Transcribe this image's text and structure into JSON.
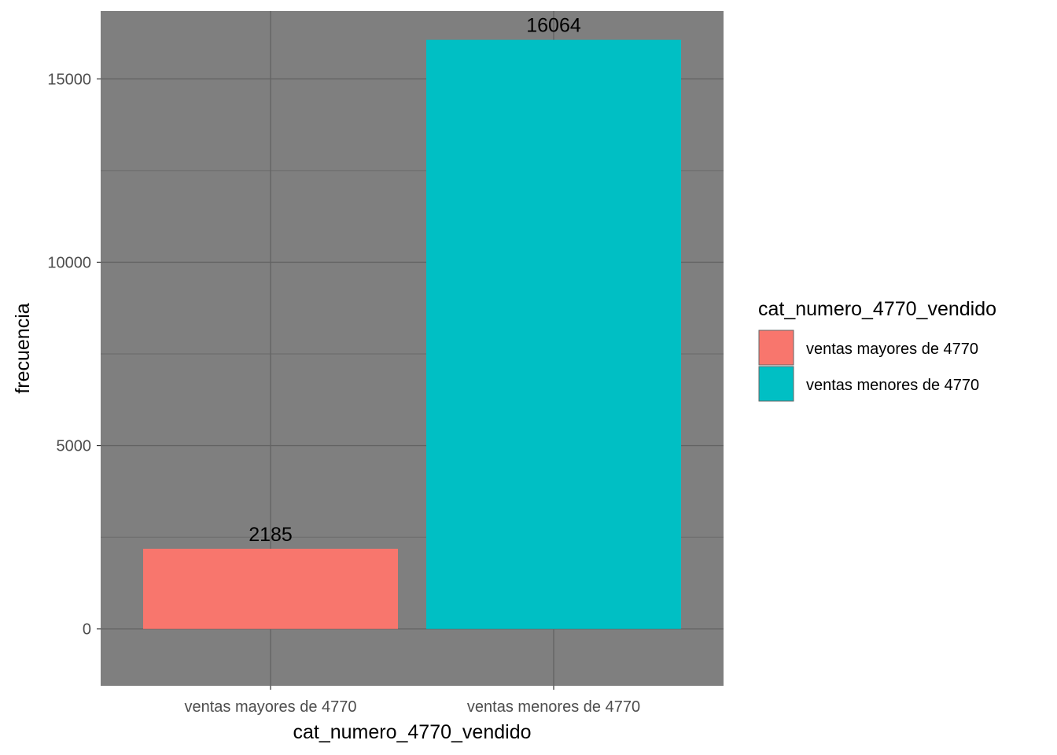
{
  "chart_data": {
    "type": "bar",
    "categories": [
      "ventas mayores de 4770",
      "ventas menores de 4770"
    ],
    "values": [
      2185,
      16064
    ],
    "data_labels": [
      "2185",
      "16064"
    ],
    "colors": [
      "#F8766D",
      "#00BFC4"
    ],
    "xlabel": "cat_numero_4770_vendido",
    "ylabel": "frecuencia",
    "ylim": [
      -1550,
      16850
    ],
    "yticks": [
      0,
      5000,
      10000,
      15000
    ],
    "ytick_labels": [
      "0",
      "5000",
      "10000",
      "15000"
    ],
    "grid": true,
    "panel_background": "#7F7F7F",
    "grid_color": "#636363",
    "legend": {
      "title": "cat_numero_4770_vendido",
      "position": "right",
      "entries": [
        "ventas mayores de 4770",
        "ventas menores de 4770"
      ]
    }
  }
}
